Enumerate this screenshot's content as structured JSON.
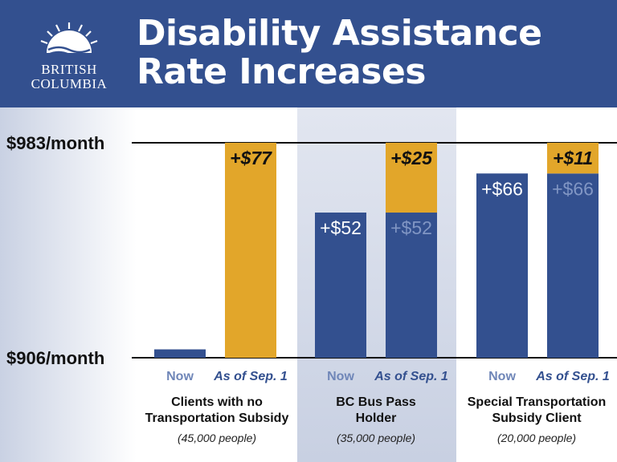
{
  "header": {
    "title_line1": "Disability Assistance",
    "title_line2": "Rate Increases",
    "logo_line1": "BRITISH",
    "logo_line2": "COLUMBIA",
    "background_color": "#33508f"
  },
  "chart_data": {
    "type": "bar",
    "stacked": true,
    "ylim": [
      906,
      983
    ],
    "y_tick_labels": [
      {
        "value": 983,
        "label": "$983/month"
      },
      {
        "value": 906,
        "label": "$906/month"
      }
    ],
    "x_tick_labels": [
      "Now",
      "As of Sep. 1"
    ],
    "groups": [
      {
        "name_line1": "Clients with no",
        "name_line2": "Transportation Subsidy",
        "count": "(45,000 people)",
        "bars": [
          {
            "label": "Now",
            "segments": [
              {
                "value": 3,
                "label": "",
                "color": "#33508f"
              }
            ]
          },
          {
            "label": "As of Sep. 1",
            "segments": [
              {
                "value": 77,
                "label": "+$77",
                "color": "#e2a62a"
              }
            ]
          }
        ]
      },
      {
        "name_line1": "BC Bus Pass",
        "name_line2": "Holder",
        "count": "(35,000 people)",
        "bars": [
          {
            "label": "Now",
            "segments": [
              {
                "value": 52,
                "label": "+$52",
                "color": "#33508f"
              }
            ]
          },
          {
            "label": "As of Sep. 1",
            "segments": [
              {
                "value": 52,
                "label": "+$52",
                "color": "#33508f"
              },
              {
                "value": 25,
                "label": "+$25",
                "color": "#e2a62a"
              }
            ]
          }
        ]
      },
      {
        "name_line1": "Special Transportation",
        "name_line2": "Subsidy Client",
        "count": "(20,000 people)",
        "bars": [
          {
            "label": "Now",
            "segments": [
              {
                "value": 66,
                "label": "+$66",
                "color": "#33508f"
              }
            ]
          },
          {
            "label": "As of Sep. 1",
            "segments": [
              {
                "value": 66,
                "label": "+$66",
                "color": "#33508f"
              },
              {
                "value": 11,
                "label": "+$11",
                "color": "#e2a62a"
              }
            ]
          }
        ]
      }
    ],
    "colors": {
      "now": "#33508f",
      "increase": "#e2a62a",
      "now_tick": "#6f86b8",
      "sep_tick": "#33508f",
      "repeat_label": "#8196c4",
      "panel_shade": "#dde2ee"
    }
  }
}
